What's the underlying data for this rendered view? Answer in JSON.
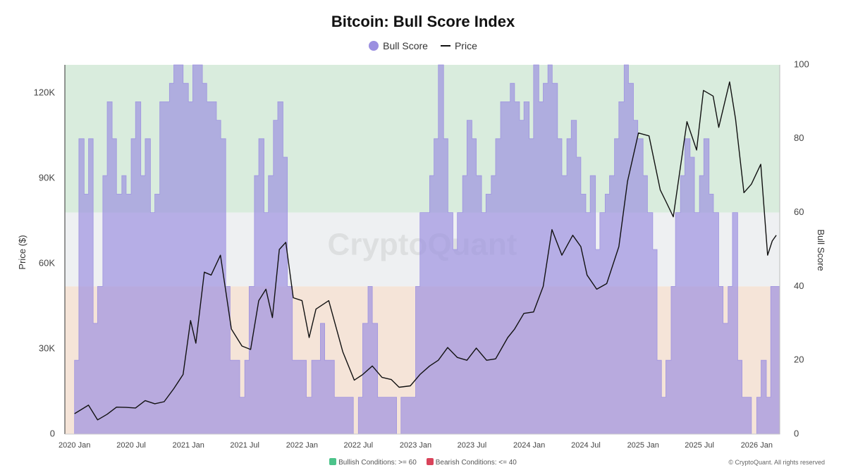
{
  "chart_data": {
    "type": "area",
    "title": "Bitcoin: Bull Score Index",
    "legend_position": "top-center",
    "grid": false,
    "watermark": "CryptoQuant",
    "copyright": "© CryptoQuant. All rights reserved",
    "ylabel": "Price ($)",
    "y2label": "Bull Score",
    "ylim": [
      0,
      130000
    ],
    "y2lim": [
      0,
      100
    ],
    "yticks": [
      "0",
      "30K",
      "60K",
      "90K",
      "120K"
    ],
    "y2ticks": [
      "0",
      "20",
      "40",
      "60",
      "80",
      "100"
    ],
    "xlim": [
      "2019-12-01",
      "2026-03-16"
    ],
    "xticks": [
      "2020 Jan",
      "2020 Jul",
      "2021 Jan",
      "2021 Jul",
      "2022 Jan",
      "2022 Jul",
      "2023 Jan",
      "2023 Jul",
      "2024 Jan",
      "2024 Jul",
      "2025 Jan",
      "2025 Jul",
      "2026 Jan"
    ],
    "bands": [
      {
        "label": "Bullish Conditions: >= 60",
        "from": 60,
        "to": 100,
        "color": "#d9ecdd"
      },
      {
        "label": "Bearish Conditions: <= 40",
        "from": 0,
        "to": 40,
        "color": "#f5e4d8"
      }
    ],
    "band_neutral_color": "#eef0f2",
    "legend_swatches": {
      "bullish": "#4cc38a",
      "bearish": "#d9435a"
    },
    "series": [
      {
        "name": "Bull Score",
        "axis": "right",
        "color": "#9b8fe0",
        "points": [
          [
            "2020-01-01",
            20
          ],
          [
            "2020-01-15",
            80
          ],
          [
            "2020-02-01",
            65
          ],
          [
            "2020-02-15",
            80
          ],
          [
            "2020-03-01",
            30
          ],
          [
            "2020-03-15",
            40
          ],
          [
            "2020-04-01",
            70
          ],
          [
            "2020-04-15",
            90
          ],
          [
            "2020-05-01",
            80
          ],
          [
            "2020-05-15",
            65
          ],
          [
            "2020-06-01",
            70
          ],
          [
            "2020-06-15",
            65
          ],
          [
            "2020-07-01",
            80
          ],
          [
            "2020-07-15",
            90
          ],
          [
            "2020-08-01",
            70
          ],
          [
            "2020-08-15",
            80
          ],
          [
            "2020-09-01",
            60
          ],
          [
            "2020-09-15",
            65
          ],
          [
            "2020-10-01",
            90
          ],
          [
            "2020-10-15",
            90
          ],
          [
            "2020-11-01",
            95
          ],
          [
            "2020-11-15",
            100
          ],
          [
            "2020-12-01",
            100
          ],
          [
            "2020-12-15",
            95
          ],
          [
            "2021-01-01",
            90
          ],
          [
            "2021-01-15",
            100
          ],
          [
            "2021-02-01",
            100
          ],
          [
            "2021-02-15",
            95
          ],
          [
            "2021-03-01",
            90
          ],
          [
            "2021-03-15",
            90
          ],
          [
            "2021-04-01",
            85
          ],
          [
            "2021-04-15",
            80
          ],
          [
            "2021-05-01",
            40
          ],
          [
            "2021-05-15",
            20
          ],
          [
            "2021-06-01",
            20
          ],
          [
            "2021-06-15",
            10
          ],
          [
            "2021-07-01",
            20
          ],
          [
            "2021-07-15",
            40
          ],
          [
            "2021-08-01",
            70
          ],
          [
            "2021-08-15",
            80
          ],
          [
            "2021-09-01",
            60
          ],
          [
            "2021-09-15",
            70
          ],
          [
            "2021-10-01",
            85
          ],
          [
            "2021-10-15",
            90
          ],
          [
            "2021-11-01",
            75
          ],
          [
            "2021-11-15",
            40
          ],
          [
            "2021-12-01",
            20
          ],
          [
            "2021-12-15",
            20
          ],
          [
            "2022-01-01",
            20
          ],
          [
            "2022-01-15",
            10
          ],
          [
            "2022-02-01",
            20
          ],
          [
            "2022-02-15",
            20
          ],
          [
            "2022-03-01",
            30
          ],
          [
            "2022-03-15",
            20
          ],
          [
            "2022-04-01",
            20
          ],
          [
            "2022-04-15",
            10
          ],
          [
            "2022-05-01",
            10
          ],
          [
            "2022-05-15",
            10
          ],
          [
            "2022-06-01",
            10
          ],
          [
            "2022-06-15",
            0
          ],
          [
            "2022-07-01",
            10
          ],
          [
            "2022-07-15",
            30
          ],
          [
            "2022-08-01",
            40
          ],
          [
            "2022-08-15",
            30
          ],
          [
            "2022-09-01",
            10
          ],
          [
            "2022-09-15",
            10
          ],
          [
            "2022-10-01",
            10
          ],
          [
            "2022-10-15",
            10
          ],
          [
            "2022-11-01",
            0
          ],
          [
            "2022-11-15",
            10
          ],
          [
            "2022-12-01",
            10
          ],
          [
            "2022-12-15",
            10
          ],
          [
            "2023-01-01",
            40
          ],
          [
            "2023-01-15",
            60
          ],
          [
            "2023-02-01",
            60
          ],
          [
            "2023-02-15",
            70
          ],
          [
            "2023-03-01",
            80
          ],
          [
            "2023-03-15",
            100
          ],
          [
            "2023-04-01",
            80
          ],
          [
            "2023-04-15",
            60
          ],
          [
            "2023-05-01",
            50
          ],
          [
            "2023-05-15",
            60
          ],
          [
            "2023-06-01",
            70
          ],
          [
            "2023-06-15",
            85
          ],
          [
            "2023-07-01",
            80
          ],
          [
            "2023-07-15",
            70
          ],
          [
            "2023-08-01",
            60
          ],
          [
            "2023-08-15",
            65
          ],
          [
            "2023-09-01",
            70
          ],
          [
            "2023-09-15",
            80
          ],
          [
            "2023-10-01",
            90
          ],
          [
            "2023-10-15",
            90
          ],
          [
            "2023-11-01",
            95
          ],
          [
            "2023-11-15",
            90
          ],
          [
            "2023-12-01",
            85
          ],
          [
            "2023-12-15",
            90
          ],
          [
            "2024-01-01",
            80
          ],
          [
            "2024-01-15",
            100
          ],
          [
            "2024-02-01",
            90
          ],
          [
            "2024-02-15",
            95
          ],
          [
            "2024-03-01",
            100
          ],
          [
            "2024-03-15",
            95
          ],
          [
            "2024-04-01",
            80
          ],
          [
            "2024-04-15",
            70
          ],
          [
            "2024-05-01",
            80
          ],
          [
            "2024-05-15",
            85
          ],
          [
            "2024-06-01",
            75
          ],
          [
            "2024-06-15",
            65
          ],
          [
            "2024-07-01",
            60
          ],
          [
            "2024-07-15",
            70
          ],
          [
            "2024-08-01",
            50
          ],
          [
            "2024-08-15",
            60
          ],
          [
            "2024-09-01",
            65
          ],
          [
            "2024-09-15",
            70
          ],
          [
            "2024-10-01",
            80
          ],
          [
            "2024-10-15",
            90
          ],
          [
            "2024-11-01",
            100
          ],
          [
            "2024-11-15",
            95
          ],
          [
            "2024-12-01",
            85
          ],
          [
            "2024-12-15",
            80
          ],
          [
            "2025-01-01",
            70
          ],
          [
            "2025-01-15",
            60
          ],
          [
            "2025-02-01",
            50
          ],
          [
            "2025-02-15",
            20
          ],
          [
            "2025-03-01",
            10
          ],
          [
            "2025-03-15",
            20
          ],
          [
            "2025-04-01",
            40
          ],
          [
            "2025-04-15",
            60
          ],
          [
            "2025-05-01",
            70
          ],
          [
            "2025-05-15",
            80
          ],
          [
            "2025-06-01",
            75
          ],
          [
            "2025-06-15",
            60
          ],
          [
            "2025-07-01",
            70
          ],
          [
            "2025-07-15",
            80
          ],
          [
            "2025-08-01",
            65
          ],
          [
            "2025-08-15",
            60
          ],
          [
            "2025-09-01",
            40
          ],
          [
            "2025-09-15",
            30
          ],
          [
            "2025-10-01",
            40
          ],
          [
            "2025-10-15",
            60
          ],
          [
            "2025-11-01",
            20
          ],
          [
            "2025-11-15",
            10
          ],
          [
            "2025-12-01",
            10
          ],
          [
            "2025-12-15",
            0
          ],
          [
            "2026-01-01",
            10
          ],
          [
            "2026-01-15",
            20
          ],
          [
            "2026-02-01",
            10
          ],
          [
            "2026-02-15",
            40
          ],
          [
            "2026-03-01",
            40
          ]
        ]
      },
      {
        "name": "Price",
        "axis": "left",
        "color": "#111111",
        "points": [
          [
            "2020-01-01",
            7200
          ],
          [
            "2020-02-15",
            10200
          ],
          [
            "2020-03-15",
            5000
          ],
          [
            "2020-04-15",
            7000
          ],
          [
            "2020-05-15",
            9500
          ],
          [
            "2020-06-15",
            9400
          ],
          [
            "2020-07-15",
            9200
          ],
          [
            "2020-08-15",
            11800
          ],
          [
            "2020-09-15",
            10700
          ],
          [
            "2020-10-15",
            11400
          ],
          [
            "2020-11-15",
            16000
          ],
          [
            "2020-12-15",
            21000
          ],
          [
            "2021-01-08",
            40000
          ],
          [
            "2021-01-25",
            32000
          ],
          [
            "2021-02-21",
            57000
          ],
          [
            "2021-03-15",
            56000
          ],
          [
            "2021-04-14",
            63000
          ],
          [
            "2021-05-19",
            37000
          ],
          [
            "2021-06-22",
            31000
          ],
          [
            "2021-07-20",
            29800
          ],
          [
            "2021-08-15",
            47000
          ],
          [
            "2021-09-07",
            51000
          ],
          [
            "2021-09-28",
            41000
          ],
          [
            "2021-10-20",
            65000
          ],
          [
            "2021-11-10",
            67500
          ],
          [
            "2021-12-04",
            48000
          ],
          [
            "2022-01-01",
            47000
          ],
          [
            "2022-01-24",
            34000
          ],
          [
            "2022-02-15",
            44000
          ],
          [
            "2022-03-28",
            47000
          ],
          [
            "2022-05-12",
            29000
          ],
          [
            "2022-06-18",
            19000
          ],
          [
            "2022-07-15",
            21000
          ],
          [
            "2022-08-15",
            24000
          ],
          [
            "2022-09-15",
            20000
          ],
          [
            "2022-10-15",
            19200
          ],
          [
            "2022-11-09",
            16500
          ],
          [
            "2022-12-15",
            17000
          ],
          [
            "2023-01-15",
            21000
          ],
          [
            "2023-02-15",
            24000
          ],
          [
            "2023-03-15",
            26000
          ],
          [
            "2023-04-14",
            30500
          ],
          [
            "2023-05-15",
            27000
          ],
          [
            "2023-06-15",
            26000
          ],
          [
            "2023-07-15",
            30300
          ],
          [
            "2023-08-17",
            26000
          ],
          [
            "2023-09-15",
            26500
          ],
          [
            "2023-10-24",
            34000
          ],
          [
            "2023-11-15",
            37000
          ],
          [
            "2023-12-15",
            42500
          ],
          [
            "2024-01-15",
            43000
          ],
          [
            "2024-02-15",
            52000
          ],
          [
            "2024-03-14",
            72000
          ],
          [
            "2024-04-15",
            63000
          ],
          [
            "2024-05-20",
            70000
          ],
          [
            "2024-06-15",
            66000
          ],
          [
            "2024-07-05",
            56000
          ],
          [
            "2024-08-05",
            51000
          ],
          [
            "2024-09-06",
            53000
          ],
          [
            "2024-10-15",
            66000
          ],
          [
            "2024-11-12",
            89000
          ],
          [
            "2024-12-17",
            106000
          ],
          [
            "2025-01-20",
            105000
          ],
          [
            "2025-02-25",
            86000
          ],
          [
            "2025-03-15",
            82000
          ],
          [
            "2025-04-08",
            76500
          ],
          [
            "2025-05-22",
            110000
          ],
          [
            "2025-06-22",
            100000
          ],
          [
            "2025-07-14",
            121000
          ],
          [
            "2025-08-14",
            119000
          ],
          [
            "2025-09-01",
            108000
          ],
          [
            "2025-10-06",
            124000
          ],
          [
            "2025-10-25",
            111000
          ],
          [
            "2025-11-21",
            85000
          ],
          [
            "2025-12-15",
            88000
          ],
          [
            "2026-01-14",
            95000
          ],
          [
            "2026-02-05",
            63000
          ],
          [
            "2026-02-20",
            68000
          ],
          [
            "2026-03-05",
            70000
          ]
        ]
      }
    ]
  }
}
